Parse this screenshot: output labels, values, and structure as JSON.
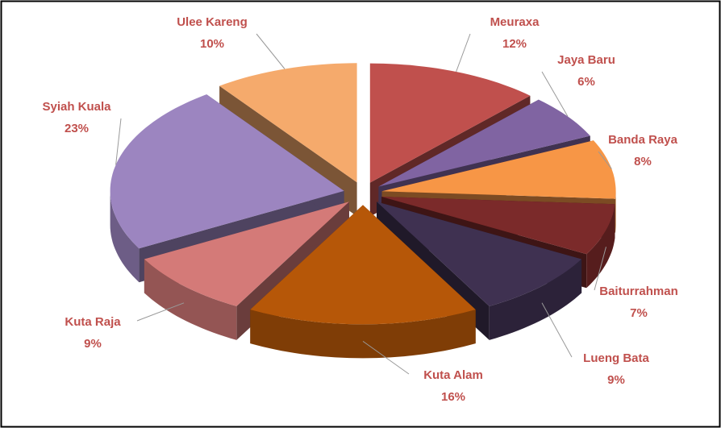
{
  "chart_data": {
    "type": "pie3d",
    "categories": [
      "Meuraxa",
      "Jaya Baru",
      "Banda Raya",
      "Baiturrahman",
      "Lueng Bata",
      "Kuta Alam",
      "Kuta Raja",
      "Syiah Kuala",
      "Ulee Kareng"
    ],
    "values": [
      12,
      6,
      8,
      7,
      9,
      16,
      9,
      23,
      10
    ],
    "value_labels": [
      "12%",
      "6%",
      "8%",
      "7%",
      "9%",
      "16%",
      "9%",
      "23%",
      "10%"
    ],
    "colors": [
      "#c0504d",
      "#8064a2",
      "#f79646",
      "#7b2a2a",
      "#3f3151",
      "#b65708",
      "#d47a78",
      "#9c85c0",
      "#f5aa6c"
    ]
  }
}
